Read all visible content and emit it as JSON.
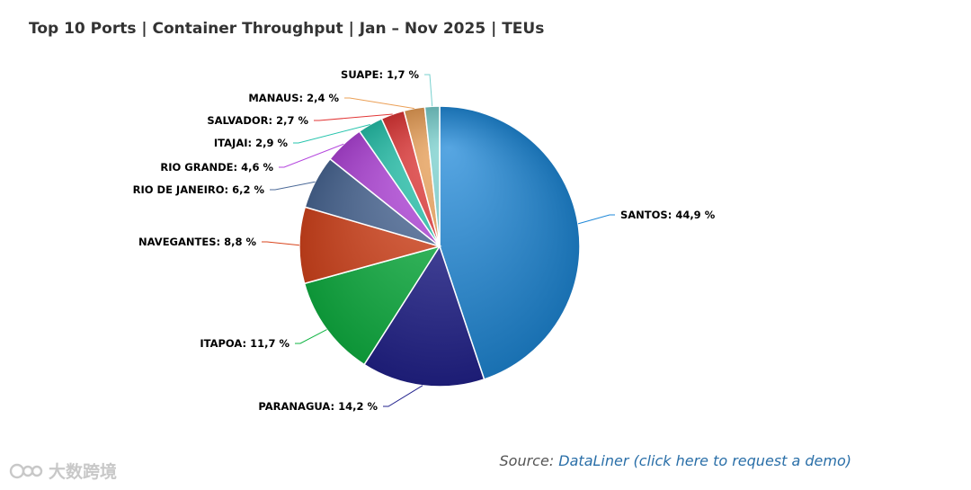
{
  "chart_data": {
    "type": "pie",
    "title": "Top 10 Ports | Container Throughput | Jan – Nov 2025 | TEUs",
    "slices": [
      {
        "name": "SANTOS",
        "value": 44.9,
        "label": "SANTOS: 44,9 %",
        "color": "#1f88d8"
      },
      {
        "name": "PARANAGUA",
        "value": 14.2,
        "label": "PARANAGUA: 14,2 %",
        "color": "#22228e"
      },
      {
        "name": "ITAPOA",
        "value": 11.7,
        "label": "ITAPOA: 11,7 %",
        "color": "#10b443"
      },
      {
        "name": "NAVEGANTES",
        "value": 8.8,
        "label": "NAVEGANTES: 8,8 %",
        "color": "#d9451d"
      },
      {
        "name": "RIO DE JANEIRO",
        "value": 6.2,
        "label": "RIO DE JANEIRO: 6,2 %",
        "color": "#4c6a98"
      },
      {
        "name": "RIO GRANDE",
        "value": 4.6,
        "label": "RIO GRANDE: 4,6 %",
        "color": "#b446de"
      },
      {
        "name": "ITAJAI",
        "value": 2.9,
        "label": "ITAJAI: 2,9 %",
        "color": "#26c4ad"
      },
      {
        "name": "SALVADOR",
        "value": 2.7,
        "label": "SALVADOR: 2,7 %",
        "color": "#e23636"
      },
      {
        "name": "MANAUS",
        "value": 2.4,
        "label": "MANAUS: 2,4 %",
        "color": "#eba057"
      },
      {
        "name": "SUAPE",
        "value": 1.7,
        "label": "SUAPE: 1,7 %",
        "color": "#79d1cf"
      }
    ]
  },
  "source": {
    "prefix": "Source: ",
    "link_text": "DataLiner (click here to request a demo)"
  },
  "watermark": {
    "text": "大数跨境"
  }
}
